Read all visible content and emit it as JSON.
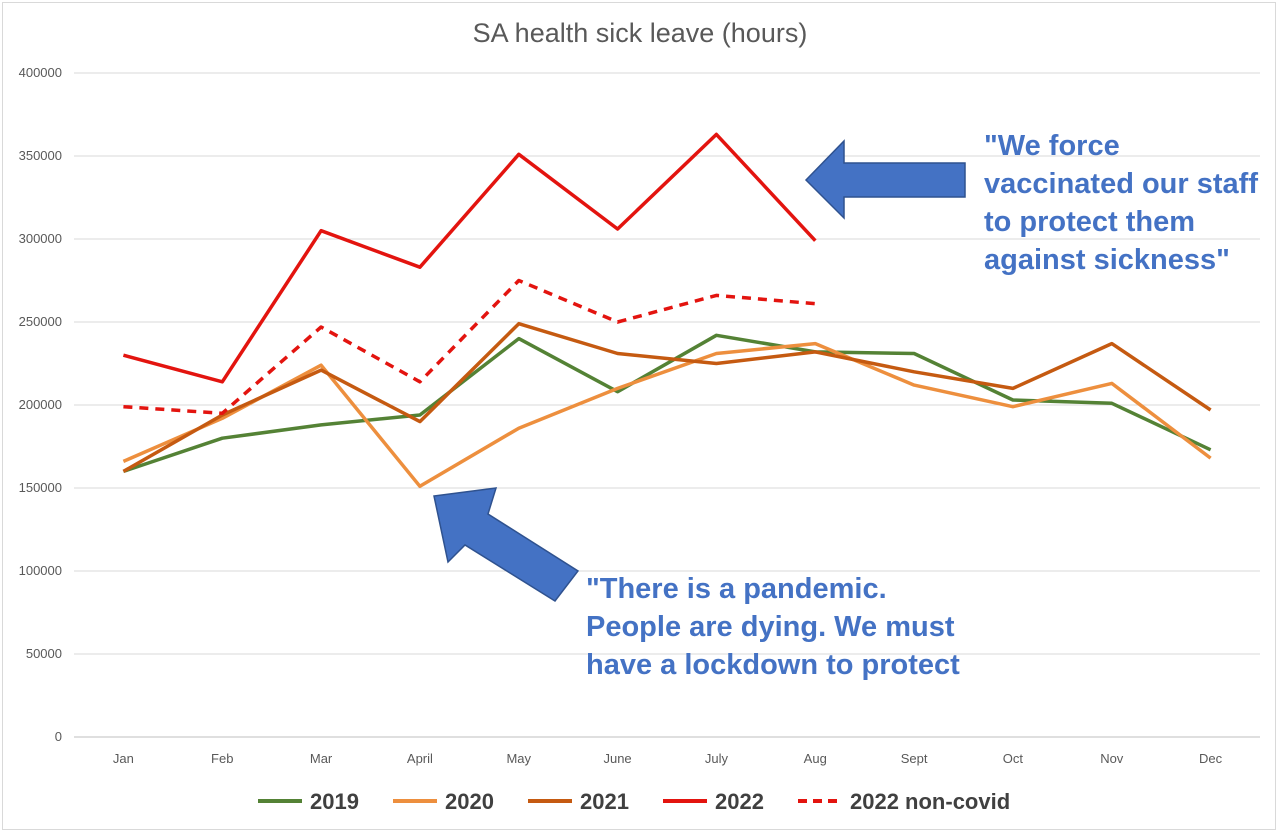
{
  "chart_data": {
    "type": "line",
    "title": "SA health sick leave (hours)",
    "xlabel": "",
    "ylabel": "",
    "categories": [
      "Jan",
      "Feb",
      "Mar",
      "April",
      "May",
      "June",
      "July",
      "Aug",
      "Sept",
      "Oct",
      "Nov",
      "Dec"
    ],
    "ylim": [
      0,
      400000
    ],
    "yticks": [
      0,
      50000,
      100000,
      150000,
      200000,
      250000,
      300000,
      350000,
      400000
    ],
    "grid": true,
    "legend_position": "bottom",
    "series": [
      {
        "name": "2019",
        "color": "#548235",
        "dashed": false,
        "values": [
          160000,
          180000,
          188000,
          194000,
          240000,
          208000,
          242000,
          232000,
          231000,
          203000,
          201000,
          173000
        ]
      },
      {
        "name": "2020",
        "color": "#ed8f3e",
        "dashed": false,
        "values": [
          166000,
          192000,
          224000,
          151000,
          186000,
          210000,
          231000,
          237000,
          212000,
          199000,
          213000,
          168000
        ]
      },
      {
        "name": "2021",
        "color": "#c55a11",
        "dashed": false,
        "values": [
          160000,
          194000,
          221000,
          190000,
          249000,
          231000,
          225000,
          232000,
          220000,
          210000,
          237000,
          197000
        ]
      },
      {
        "name": "2022",
        "color": "#e3140f",
        "dashed": false,
        "values": [
          230000,
          214000,
          305000,
          283000,
          351000,
          306000,
          363000,
          299000,
          null,
          null,
          null,
          null
        ]
      },
      {
        "name": "2022 non-covid",
        "color": "#e3140f",
        "dashed": true,
        "values": [
          199000,
          195000,
          247000,
          214000,
          275000,
          250000,
          266000,
          261000,
          null,
          null,
          null,
          null
        ]
      }
    ],
    "annotations": [
      {
        "text": "\"We force\nvaccinated our staff\nto protect them\nagainst sickness\"",
        "color": "#4472c4"
      },
      {
        "text": "\"There is a pandemic.\nPeople are dying. We must\nhave a lockdown to protect",
        "color": "#4472c4"
      }
    ]
  }
}
